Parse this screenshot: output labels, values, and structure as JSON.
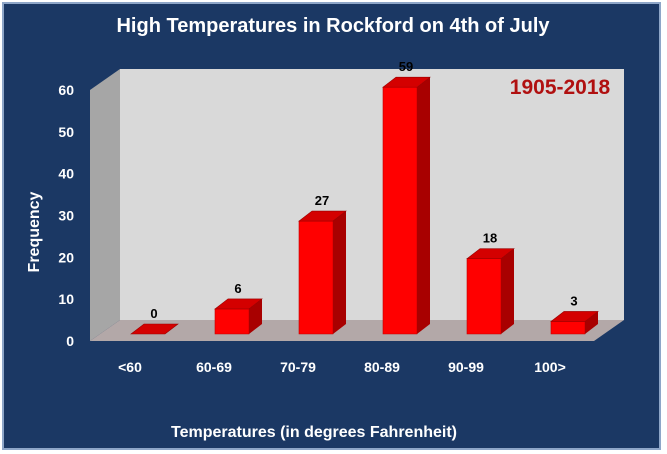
{
  "chart_data": {
    "type": "bar",
    "title": "High Temperatures in Rockford on 4th of July",
    "annotation": "1905-2018",
    "xlabel": "Temperatures (in degrees Fahrenheit)",
    "ylabel": "Frequency",
    "categories": [
      "<60",
      "60-69",
      "70-79",
      "80-89",
      "90-99",
      "100>"
    ],
    "values": [
      0,
      6,
      27,
      59,
      18,
      3
    ],
    "ylim": [
      0,
      60
    ],
    "yticks": [
      0,
      10,
      20,
      30,
      40,
      50,
      60
    ],
    "grid": false,
    "style": "3d-column",
    "colors": {
      "background": "#1b3864",
      "bar_front": "#ff0000",
      "bar_side": "#a80000",
      "bar_top": "#d40000",
      "back_wall": "#d9d9d9",
      "side_wall": "#a6a6a6",
      "floor": "#b3a8a8",
      "text": "#ffffff",
      "annotation": "#b01010"
    }
  }
}
